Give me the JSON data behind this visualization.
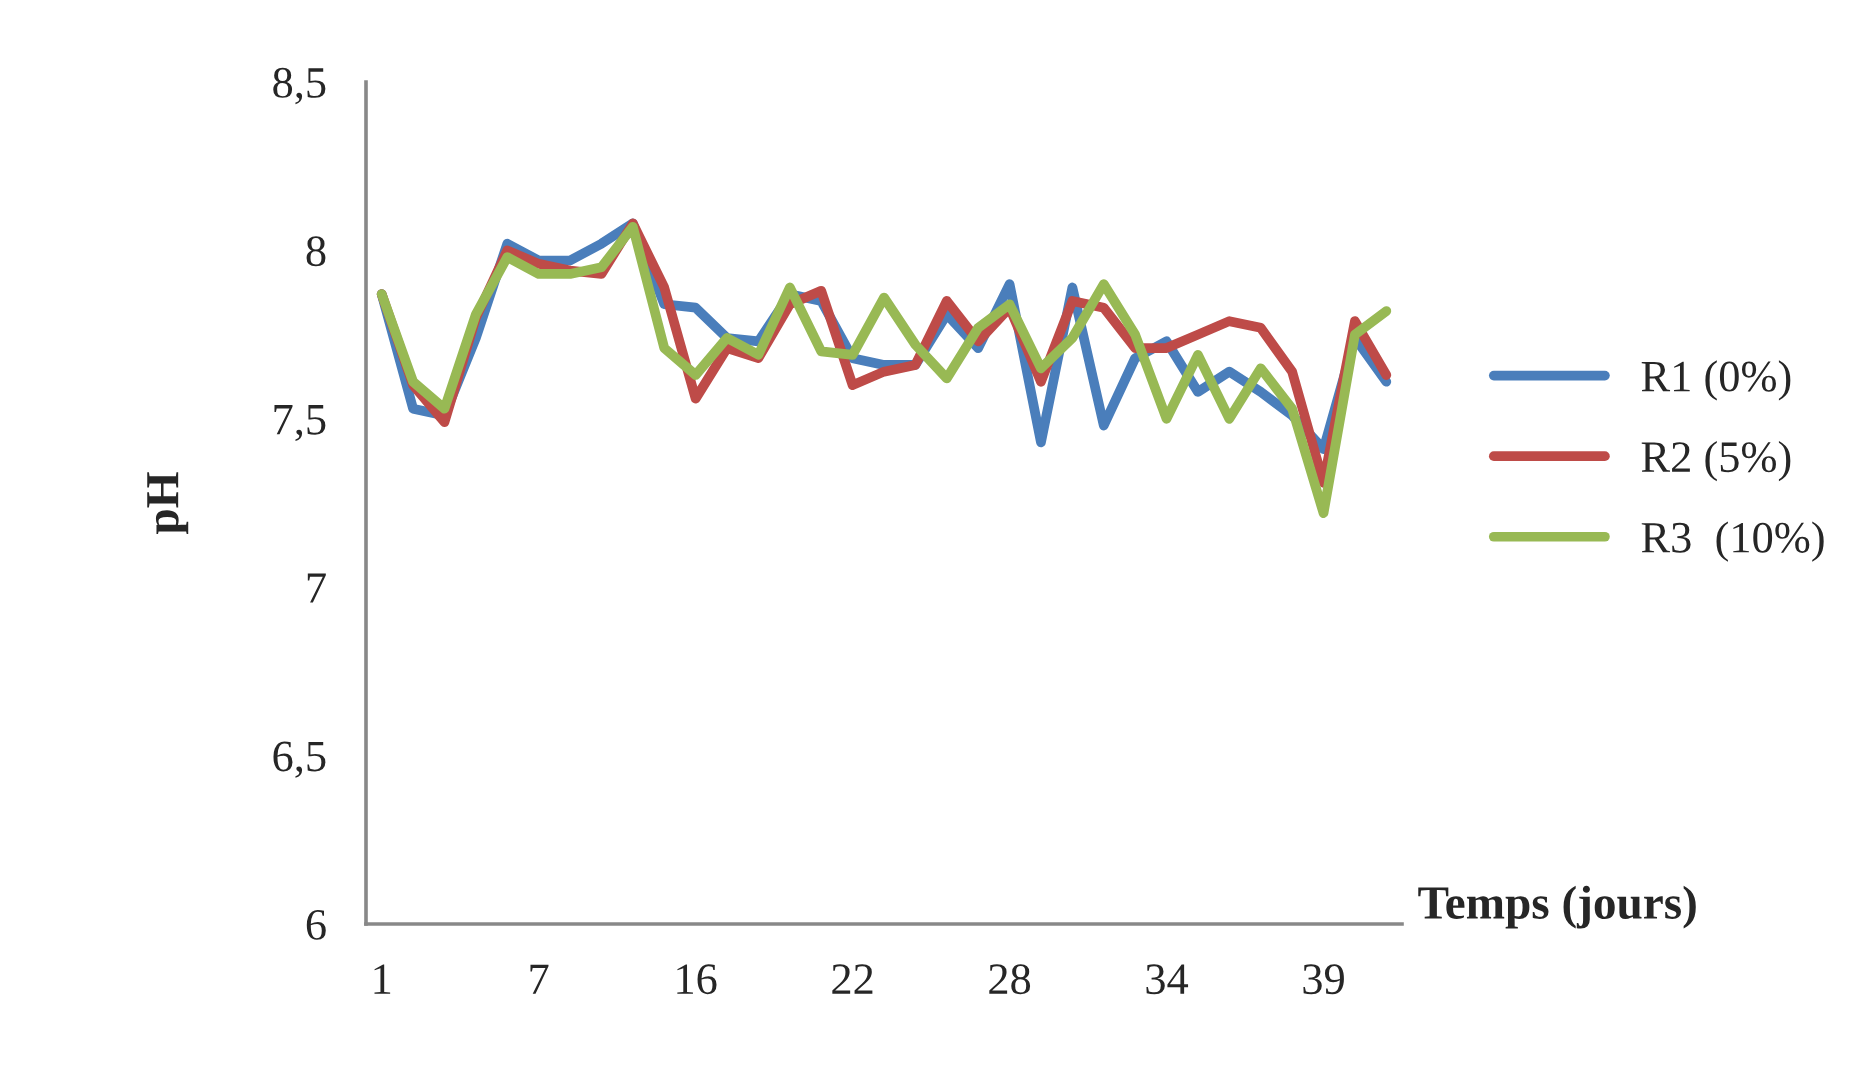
{
  "chart_data": {
    "type": "line",
    "xlabel": "Temps (jours)",
    "ylabel": "pH",
    "categories": [
      "1",
      null,
      null,
      null,
      null,
      "7",
      null,
      null,
      null,
      null,
      "16",
      null,
      null,
      null,
      null,
      "22",
      null,
      null,
      null,
      null,
      "28",
      null,
      null,
      null,
      null,
      "34",
      null,
      null,
      null,
      null,
      "39",
      null,
      null
    ],
    "series": [
      {
        "name": "R1 (0%)",
        "color": "#4a7ebb",
        "values": [
          7.87,
          7.53,
          7.51,
          7.74,
          8.02,
          7.97,
          7.97,
          8.02,
          8.08,
          7.84,
          7.83,
          7.74,
          7.73,
          7.87,
          7.85,
          7.68,
          7.66,
          7.66,
          7.81,
          7.71,
          7.9,
          7.43,
          7.89,
          7.48,
          7.68,
          7.73,
          7.58,
          7.64,
          7.58,
          7.51,
          7.41,
          7.74,
          7.61
        ]
      },
      {
        "name": "R2 (5%)",
        "color": "#be4b48",
        "values": [
          7.87,
          7.6,
          7.49,
          7.8,
          8.0,
          7.96,
          7.94,
          7.93,
          8.08,
          7.89,
          7.56,
          7.71,
          7.68,
          7.84,
          7.88,
          7.6,
          7.64,
          7.66,
          7.85,
          7.73,
          7.83,
          7.61,
          7.85,
          7.83,
          7.71,
          7.71,
          7.75,
          7.79,
          7.77,
          7.64,
          7.31,
          7.79,
          7.63
        ]
      },
      {
        "name": "R3  (10%)",
        "color": "#98b954",
        "values": [
          7.87,
          7.61,
          7.53,
          7.81,
          7.98,
          7.93,
          7.93,
          7.95,
          8.07,
          7.71,
          7.63,
          7.74,
          7.69,
          7.89,
          7.7,
          7.69,
          7.86,
          7.72,
          7.62,
          7.77,
          7.84,
          7.65,
          7.74,
          7.9,
          7.75,
          7.5,
          7.69,
          7.5,
          7.65,
          7.53,
          7.22,
          7.75,
          7.82
        ]
      }
    ],
    "ylim": [
      6,
      8.5
    ],
    "yticks": [
      6,
      {
        "value": 6.5,
        "label": "6,5"
      },
      7,
      {
        "value": 7.5,
        "label": "7,5"
      },
      8,
      {
        "value": 8.5,
        "label": "8,5"
      }
    ],
    "legend": "right",
    "grid": false,
    "marker": "none",
    "line_style": "solid"
  }
}
